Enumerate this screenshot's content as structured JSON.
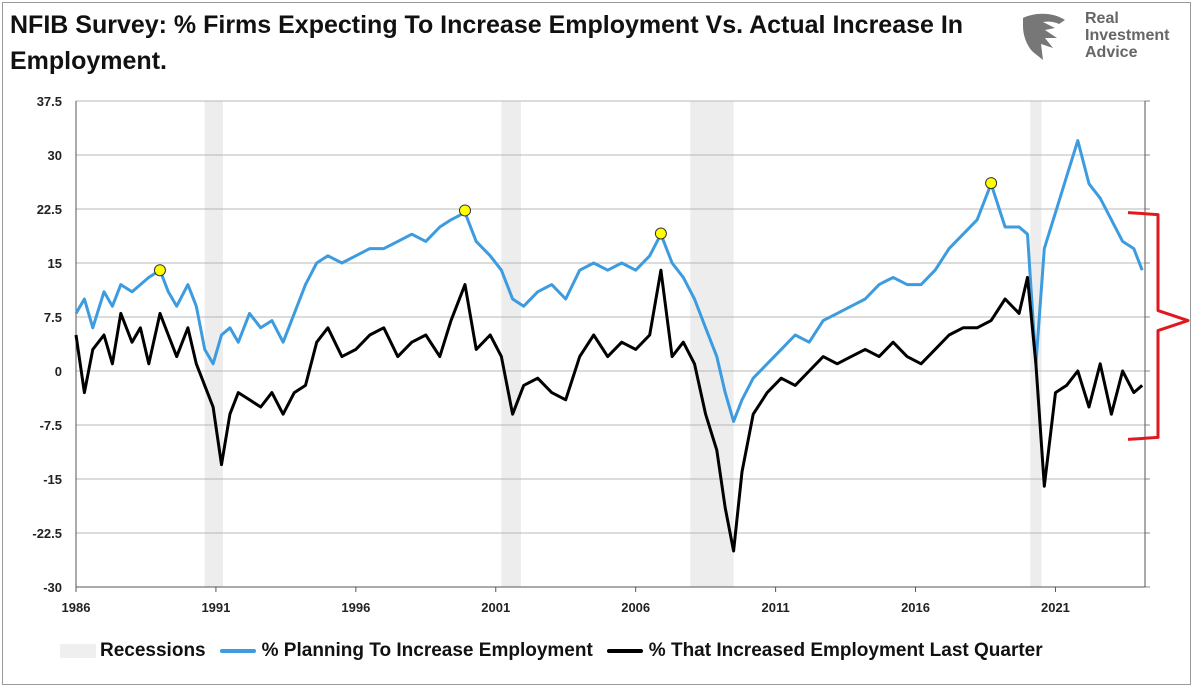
{
  "title": "NFIB Survey:  % Firms Expecting To Increase Employment Vs. Actual Increase In Employment.",
  "logo": {
    "lines": [
      "Real",
      "Investment",
      "Advice"
    ]
  },
  "legend": {
    "recessions": "Recessions",
    "planning": "% Planning To Increase Employment",
    "increased": "% That Increased Employment Last Quarter"
  },
  "colors": {
    "planning": "#3d9be0",
    "increased": "#000000",
    "recession": "#ededed",
    "bracket": "#e0191e",
    "marker": "#ffff00"
  },
  "chart_data": {
    "type": "line",
    "title": "NFIB Survey:  % Firms Expecting To Increase Employment Vs. Actual Increase In Employment.",
    "xlabel": "",
    "ylabel": "",
    "xlim": [
      1986,
      2024.2
    ],
    "ylim": [
      -30,
      37.5
    ],
    "x_ticks": [
      "1986",
      "1991",
      "1996",
      "2001",
      "2006",
      "2011",
      "2016",
      "2021"
    ],
    "y_ticks": [
      "37.5",
      "30",
      "22.5",
      "15",
      "7.5",
      "0",
      "-7.5",
      "-15",
      "-22.5",
      "-30"
    ],
    "grid": true,
    "legend_position": "bottom",
    "recessions": [
      [
        1990.6,
        1991.25
      ],
      [
        2001.2,
        2001.9
      ],
      [
        2007.95,
        2009.5
      ],
      [
        2020.1,
        2020.5
      ]
    ],
    "series": [
      {
        "name": "% Planning To Increase Employment",
        "x": [
          1986.0,
          1986.3,
          1986.6,
          1987.0,
          1987.3,
          1987.6,
          1988.0,
          1988.3,
          1988.6,
          1989.0,
          1989.3,
          1989.6,
          1990.0,
          1990.3,
          1990.6,
          1990.9,
          1991.2,
          1991.5,
          1991.8,
          1992.2,
          1992.6,
          1993.0,
          1993.4,
          1993.8,
          1994.2,
          1994.6,
          1995.0,
          1995.5,
          1996.0,
          1996.5,
          1997.0,
          1997.5,
          1998.0,
          1998.5,
          1999.0,
          1999.4,
          1999.9,
          2000.3,
          2000.8,
          2001.2,
          2001.6,
          2002.0,
          2002.5,
          2003.0,
          2003.5,
          2004.0,
          2004.5,
          2005.0,
          2005.5,
          2006.0,
          2006.5,
          2006.9,
          2007.3,
          2007.7,
          2008.1,
          2008.5,
          2008.9,
          2009.2,
          2009.5,
          2009.8,
          2010.2,
          2010.7,
          2011.2,
          2011.7,
          2012.2,
          2012.7,
          2013.2,
          2013.7,
          2014.2,
          2014.7,
          2015.2,
          2015.7,
          2016.2,
          2016.7,
          2017.2,
          2017.7,
          2018.2,
          2018.7,
          2019.2,
          2019.7,
          2020.0,
          2020.3,
          2020.6,
          2021.0,
          2021.4,
          2021.8,
          2022.2,
          2022.6,
          2023.0,
          2023.4,
          2023.8,
          2024.1
        ],
        "values": [
          8,
          10,
          6,
          11,
          9,
          12,
          11,
          12,
          13,
          14,
          11,
          9,
          12,
          9,
          3,
          1,
          5,
          6,
          4,
          8,
          6,
          7,
          4,
          8,
          12,
          15,
          16,
          15,
          16,
          17,
          17,
          18,
          19,
          18,
          20,
          21,
          22,
          18,
          16,
          14,
          10,
          9,
          11,
          12,
          10,
          14,
          15,
          14,
          15,
          14,
          16,
          19,
          15,
          13,
          10,
          6,
          2,
          -3,
          -7,
          -4,
          -1,
          1,
          3,
          5,
          4,
          7,
          8,
          9,
          10,
          12,
          13,
          12,
          12,
          14,
          17,
          19,
          21,
          26,
          20,
          20,
          19,
          1,
          17,
          22,
          27,
          32,
          26,
          24,
          21,
          18,
          17,
          14
        ]
      },
      {
        "name": "% That Increased Employment Last Quarter",
        "x": [
          1986.0,
          1986.3,
          1986.6,
          1987.0,
          1987.3,
          1987.6,
          1988.0,
          1988.3,
          1988.6,
          1989.0,
          1989.3,
          1989.6,
          1990.0,
          1990.3,
          1990.6,
          1990.9,
          1991.2,
          1991.5,
          1991.8,
          1992.2,
          1992.6,
          1993.0,
          1993.4,
          1993.8,
          1994.2,
          1994.6,
          1995.0,
          1995.5,
          1996.0,
          1996.5,
          1997.0,
          1997.5,
          1998.0,
          1998.5,
          1999.0,
          1999.4,
          1999.9,
          2000.3,
          2000.8,
          2001.2,
          2001.6,
          2002.0,
          2002.5,
          2003.0,
          2003.5,
          2004.0,
          2004.5,
          2005.0,
          2005.5,
          2006.0,
          2006.5,
          2006.9,
          2007.3,
          2007.7,
          2008.1,
          2008.5,
          2008.9,
          2009.2,
          2009.5,
          2009.8,
          2010.2,
          2010.7,
          2011.2,
          2011.7,
          2012.2,
          2012.7,
          2013.2,
          2013.7,
          2014.2,
          2014.7,
          2015.2,
          2015.7,
          2016.2,
          2016.7,
          2017.2,
          2017.7,
          2018.2,
          2018.7,
          2019.2,
          2019.7,
          2020.0,
          2020.3,
          2020.6,
          2021.0,
          2021.4,
          2021.8,
          2022.2,
          2022.6,
          2023.0,
          2023.4,
          2023.8,
          2024.1
        ],
        "values": [
          5,
          -3,
          3,
          5,
          1,
          8,
          4,
          6,
          1,
          8,
          5,
          2,
          6,
          1,
          -2,
          -5,
          -13,
          -6,
          -3,
          -4,
          -5,
          -3,
          -6,
          -3,
          -2,
          4,
          6,
          2,
          3,
          5,
          6,
          2,
          4,
          5,
          2,
          7,
          12,
          3,
          5,
          2,
          -6,
          -2,
          -1,
          -3,
          -4,
          2,
          5,
          2,
          4,
          3,
          5,
          14,
          2,
          4,
          1,
          -6,
          -11,
          -19,
          -25,
          -14,
          -6,
          -3,
          -1,
          -2,
          0,
          2,
          1,
          2,
          3,
          2,
          4,
          2,
          1,
          3,
          5,
          6,
          6,
          7,
          10,
          8,
          13,
          1,
          -16,
          -3,
          -2,
          0,
          -5,
          1,
          -6,
          0,
          -3,
          -2
        ]
      }
    ],
    "highlight_points": [
      {
        "x": 1989.0,
        "y": 14
      },
      {
        "x": 1999.9,
        "y": 22.3
      },
      {
        "x": 2006.9,
        "y": 19.1
      },
      {
        "x": 2018.7,
        "y": 26.1
      }
    ]
  }
}
